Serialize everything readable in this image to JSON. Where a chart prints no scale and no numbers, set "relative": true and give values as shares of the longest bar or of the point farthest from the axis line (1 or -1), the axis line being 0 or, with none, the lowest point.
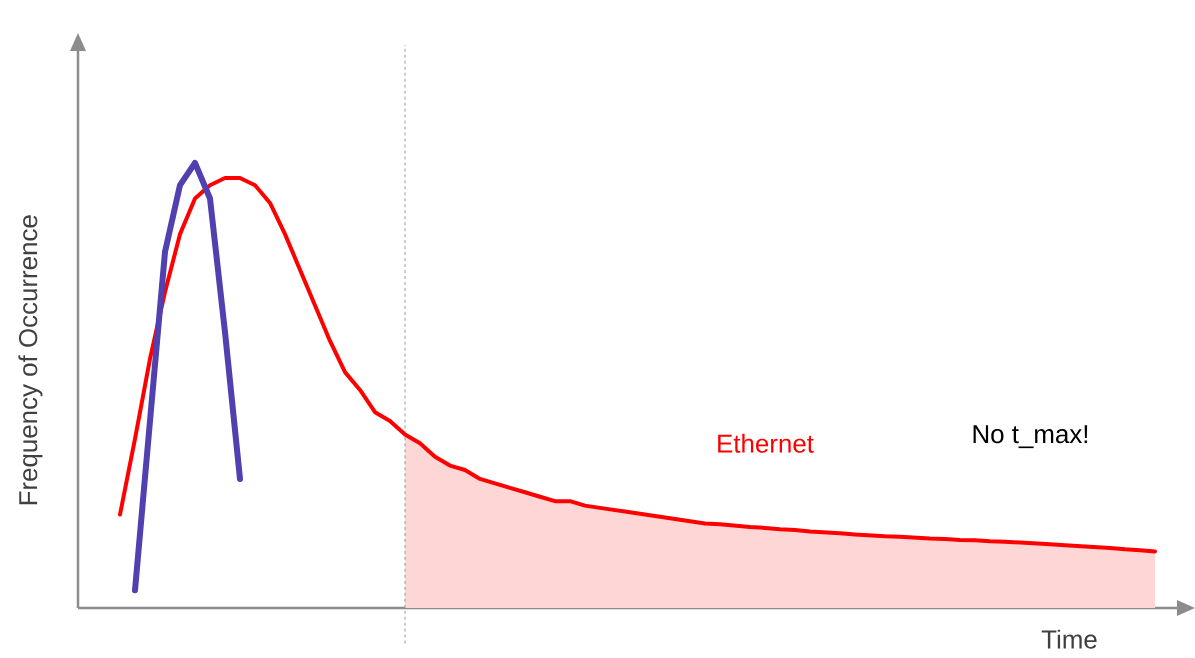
{
  "chart_data": {
    "type": "line",
    "relative": true,
    "xlabel": "Time",
    "ylabel": "Frequency of Occurrence",
    "categories": [
      null,
      null,
      null,
      null,
      null,
      null,
      null,
      null,
      null,
      null,
      null,
      null,
      null,
      null,
      null,
      null,
      null,
      null,
      null,
      null,
      null,
      null,
      null,
      null,
      null,
      null,
      null,
      null,
      null,
      null,
      null,
      null,
      null,
      null,
      null,
      null,
      null,
      null,
      null,
      null,
      null,
      null,
      null,
      null,
      null,
      null,
      null,
      null,
      null,
      null,
      null,
      null,
      null,
      null,
      null,
      null,
      null,
      null,
      null,
      null,
      null,
      null,
      null,
      null,
      null,
      null,
      null,
      null,
      null,
      null
    ],
    "series": [
      {
        "type": "area",
        "color": "#ffd6d6",
        "values": [
          null,
          null,
          null,
          null,
          null,
          null,
          null,
          null,
          null,
          null,
          null,
          null,
          null,
          null,
          null,
          null,
          null,
          null,
          null,
          0.39,
          0.37,
          0.34,
          0.32,
          0.31,
          0.29,
          0.28,
          0.27,
          0.26,
          0.25,
          0.24,
          0.24,
          0.23,
          0.225,
          0.22,
          0.215,
          0.21,
          0.205,
          0.2,
          0.195,
          0.19,
          0.188,
          0.185,
          0.182,
          0.18,
          0.177,
          0.175,
          0.172,
          0.17,
          0.168,
          0.165,
          0.163,
          0.161,
          0.16,
          0.158,
          0.156,
          0.155,
          0.153,
          0.152,
          0.15,
          0.149,
          0.147,
          0.145,
          0.143,
          0.141,
          0.139,
          0.137,
          0.135,
          0.132,
          0.13,
          0.127
        ]
      },
      {
        "name": "Ethernet",
        "color": "#ff0000",
        "values": [
          0.21,
          0.38,
          0.56,
          0.71,
          0.84,
          0.92,
          0.95,
          0.966,
          0.966,
          0.95,
          0.91,
          0.84,
          0.76,
          0.68,
          0.6,
          0.53,
          0.49,
          0.44,
          0.42,
          0.39,
          0.37,
          0.34,
          0.32,
          0.31,
          0.29,
          0.28,
          0.27,
          0.26,
          0.25,
          0.24,
          0.24,
          0.23,
          0.225,
          0.22,
          0.215,
          0.21,
          0.205,
          0.2,
          0.195,
          0.19,
          0.188,
          0.185,
          0.182,
          0.18,
          0.177,
          0.175,
          0.172,
          0.17,
          0.168,
          0.165,
          0.163,
          0.161,
          0.16,
          0.158,
          0.156,
          0.155,
          0.153,
          0.152,
          0.15,
          0.149,
          0.147,
          0.145,
          0.143,
          0.141,
          0.139,
          0.137,
          0.135,
          0.132,
          0.13,
          0.127
        ]
      },
      {
        "color": "#5040b0",
        "values": [
          null,
          0.04,
          0.42,
          0.8,
          0.95,
          1.0,
          0.92,
          0.62,
          0.29,
          null,
          null,
          null,
          null,
          null,
          null,
          null,
          null,
          null,
          null,
          null,
          null,
          null,
          null,
          null,
          null,
          null,
          null,
          null,
          null,
          null,
          null,
          null,
          null,
          null,
          null,
          null,
          null,
          null,
          null,
          null,
          null,
          null,
          null,
          null,
          null,
          null,
          null,
          null,
          null,
          null,
          null,
          null,
          null,
          null,
          null,
          null,
          null,
          null,
          null,
          null,
          null,
          null,
          null,
          null,
          null,
          null,
          null,
          null,
          null,
          null
        ]
      }
    ],
    "annotations": [
      "No t_max!"
    ]
  }
}
